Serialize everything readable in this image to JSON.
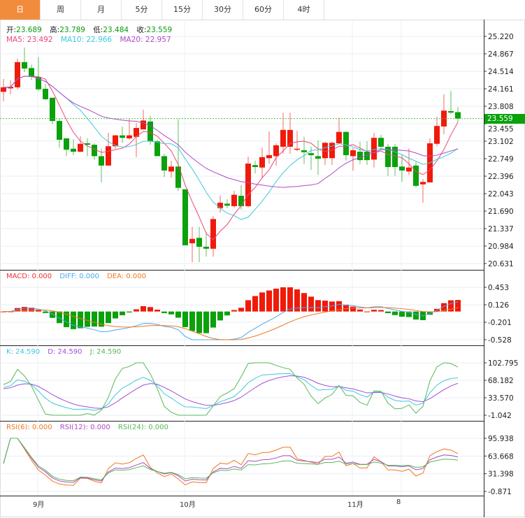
{
  "tabs": [
    {
      "label": "日",
      "active": true
    },
    {
      "label": "周"
    },
    {
      "label": "月"
    },
    {
      "label": "5分"
    },
    {
      "label": "15分"
    },
    {
      "label": "30分"
    },
    {
      "label": "60分"
    },
    {
      "label": "4时"
    }
  ],
  "ohlc_legend": {
    "open_label": "开:",
    "open": "23.689",
    "high_label": "高:",
    "high": "23.789",
    "low_label": "低:",
    "low": "23.484",
    "close_label": "收:",
    "close": "23.559"
  },
  "ma_legend": {
    "ma5": "MA5: 23.492",
    "ma10": "MA10: 22.966",
    "ma20": "MA20: 22.957"
  },
  "macd_legend": {
    "macd": "MACD: 0.000",
    "diff": "DIFF: 0.000",
    "dea": "DEA: 0.000"
  },
  "kdj_legend": {
    "k": "K: 24.590",
    "d": "D: 24.590",
    "j": "J: 24.590"
  },
  "rsi_legend": {
    "rsi6": "RSI(6): 0.000",
    "rsi12": "RSI(12): 0.000",
    "rsi24": "RSI(24): 0.000"
  },
  "current_price": "23.559",
  "colors": {
    "up": "#f01a0a",
    "down": "#0aa10a",
    "ma5": "#f0447a",
    "ma10": "#3ec8dc",
    "ma20": "#b048c8",
    "diff": "#4aa8f0",
    "dea": "#f07820",
    "k": "#3ec8dc",
    "d": "#a050d8",
    "j": "#55b955",
    "rsi6": "#f07820",
    "rsi12": "#b048c8",
    "rsi24": "#55b955",
    "accent": "#f28c3d"
  },
  "chart_data": [
    {
      "type": "candlestick",
      "fields": [
        "open",
        "close",
        "high",
        "low"
      ],
      "candles": [
        [
          24.1,
          24.19,
          24.36,
          23.91
        ],
        [
          24.17,
          24.2,
          24.33,
          24.05
        ],
        [
          24.19,
          24.7,
          24.77,
          24.15
        ],
        [
          24.7,
          24.57,
          24.99,
          24.5
        ],
        [
          24.58,
          24.4,
          24.65,
          24.34
        ],
        [
          24.4,
          24.15,
          24.8,
          24.12
        ],
        [
          24.16,
          23.95,
          24.26,
          23.93
        ],
        [
          23.98,
          23.51,
          23.98,
          23.45
        ],
        [
          23.51,
          23.13,
          23.55,
          22.97
        ],
        [
          23.16,
          22.93,
          23.16,
          22.8
        ],
        [
          22.95,
          22.89,
          23.14,
          22.82
        ],
        [
          22.89,
          23.05,
          23.2,
          22.88
        ],
        [
          23.06,
          23.03,
          23.16,
          22.8
        ],
        [
          23.03,
          22.8,
          23.06,
          22.73
        ],
        [
          22.8,
          22.61,
          22.95,
          22.27
        ],
        [
          22.61,
          23.0,
          23.27,
          22.61
        ],
        [
          23.0,
          23.22,
          23.23,
          22.95
        ],
        [
          23.22,
          23.17,
          23.4,
          23.07
        ],
        [
          23.16,
          23.22,
          23.55,
          23.13
        ],
        [
          23.19,
          23.37,
          23.47,
          22.78
        ],
        [
          23.34,
          23.52,
          23.74,
          23.34
        ],
        [
          23.5,
          23.1,
          23.62,
          23.03
        ],
        [
          23.1,
          22.8,
          23.13,
          22.8
        ],
        [
          22.8,
          22.51,
          22.85,
          22.38
        ],
        [
          22.49,
          22.59,
          22.71,
          22.37
        ],
        [
          22.59,
          22.16,
          23.55,
          22.1
        ],
        [
          22.13,
          21.0,
          22.13,
          21.0
        ],
        [
          21.04,
          21.13,
          21.37,
          20.66
        ],
        [
          21.15,
          20.97,
          21.37,
          20.66
        ],
        [
          20.97,
          20.93,
          21.27,
          20.77
        ],
        [
          20.93,
          21.53,
          21.59,
          20.77
        ],
        [
          21.75,
          21.86,
          22.0,
          21.66
        ],
        [
          21.84,
          21.8,
          21.93,
          21.75
        ],
        [
          21.79,
          22.02,
          22.1,
          21.76
        ],
        [
          22.0,
          21.79,
          22.21,
          21.72
        ],
        [
          21.79,
          22.65,
          22.79,
          21.77
        ],
        [
          22.62,
          22.58,
          22.71,
          22.45
        ],
        [
          22.57,
          22.78,
          22.97,
          22.35
        ],
        [
          22.76,
          22.82,
          23.3,
          22.65
        ],
        [
          22.8,
          23.02,
          23.06,
          22.61
        ],
        [
          22.99,
          23.33,
          23.68,
          22.85
        ],
        [
          22.99,
          23.33,
          23.68,
          22.85
        ],
        [
          22.93,
          22.95,
          23.31,
          22.9
        ],
        [
          22.92,
          22.88,
          23.19,
          22.64
        ],
        [
          22.86,
          22.82,
          22.99,
          22.52
        ],
        [
          22.8,
          22.75,
          23.12,
          22.42
        ],
        [
          22.76,
          23.07,
          23.09,
          22.62
        ],
        [
          22.76,
          23.07,
          23.09,
          22.62
        ],
        [
          23.06,
          23.29,
          23.58,
          23.06
        ],
        [
          23.29,
          22.82,
          23.3,
          22.71
        ],
        [
          22.8,
          22.92,
          22.97,
          22.51
        ],
        [
          22.89,
          22.72,
          23.09,
          22.64
        ],
        [
          22.89,
          22.72,
          23.1,
          22.62
        ],
        [
          22.73,
          23.17,
          23.27,
          22.57
        ],
        [
          23.17,
          22.99,
          23.23,
          22.95
        ],
        [
          22.99,
          22.58,
          23.05,
          22.4
        ],
        [
          22.99,
          22.58,
          23.05,
          22.4
        ],
        [
          22.59,
          22.51,
          22.82,
          22.28
        ],
        [
          22.49,
          22.57,
          22.96,
          22.42
        ],
        [
          22.61,
          22.2,
          22.68,
          22.17
        ],
        [
          22.23,
          22.28,
          22.34,
          21.86
        ],
        [
          22.27,
          23.06,
          23.16,
          22.27
        ],
        [
          23.05,
          23.41,
          23.6,
          23.0
        ],
        [
          23.4,
          23.72,
          24.05,
          23.24
        ],
        [
          23.71,
          23.68,
          24.12,
          23.65
        ],
        [
          23.689,
          23.559,
          23.789,
          23.484
        ]
      ],
      "y_ticks": [
        "25.220",
        "24.867",
        "24.514",
        "24.161",
        "23.808",
        "23.455",
        "23.102",
        "22.749",
        "22.396",
        "22.043",
        "21.690",
        "21.337",
        "20.984",
        "20.631"
      ],
      "ylim": [
        20.631,
        25.22
      ],
      "x_labels": [
        {
          "label": "9月",
          "index": 5
        },
        {
          "label": "10月",
          "index": 26
        },
        {
          "label": "11月",
          "index": 50
        },
        {
          "label": "8",
          "index": 57
        }
      ],
      "overlays": [
        "MA5",
        "MA10",
        "MA20"
      ],
      "grid": true
    },
    {
      "type": "bar+line",
      "name": "MACD",
      "y_ticks": [
        "0.453",
        "0.126",
        "-0.201",
        "-0.528"
      ],
      "ylim": [
        -0.528,
        0.453
      ]
    },
    {
      "type": "line",
      "name": "KDJ",
      "y_ticks": [
        "102.795",
        "68.182",
        "33.570",
        "-1.042"
      ],
      "ylim": [
        -1.042,
        102.795
      ]
    },
    {
      "type": "line",
      "name": "RSI",
      "y_ticks": [
        "95.938",
        "63.668",
        "31.398",
        "-0.871"
      ],
      "ylim": [
        -0.871,
        95.938
      ]
    }
  ]
}
